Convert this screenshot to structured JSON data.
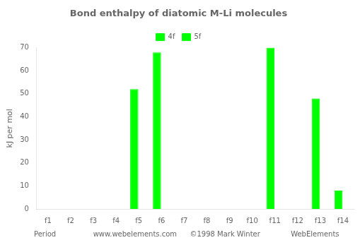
{
  "chart_data": {
    "type": "bar",
    "title": "Bond enthalpy of diatomic M-Li molecules",
    "ylabel": "kJ per mol",
    "categories": [
      "f1",
      "f2",
      "f3",
      "f4",
      "f5",
      "f6",
      "f7",
      "f8",
      "f9",
      "f10",
      "f11",
      "f12",
      "f13",
      "f14"
    ],
    "series": [
      {
        "name": "4f",
        "color": "#00ff00",
        "values": [
          0,
          0,
          0,
          0,
          52,
          68,
          0,
          0,
          0,
          0,
          70,
          0,
          48,
          8
        ]
      },
      {
        "name": "5f",
        "color": "#00ff00",
        "values": [
          0,
          0,
          0,
          0,
          0,
          0,
          0,
          0,
          0,
          0,
          0,
          0,
          0,
          0
        ]
      }
    ],
    "ylim": [
      0,
      70
    ],
    "yticks": [
      0,
      10,
      20,
      30,
      40,
      50,
      60,
      70
    ],
    "grid": false,
    "legend": "top",
    "annotations": [
      "Period",
      "www.webelements.com",
      "©1998 Mark Winter",
      "WebElements"
    ]
  }
}
